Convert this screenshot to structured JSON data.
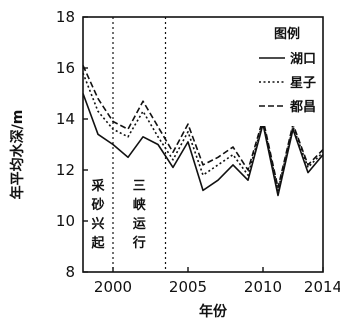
{
  "chart_data": {
    "type": "line",
    "title": "",
    "xlabel": "年份",
    "ylabel": "年平均水深/m",
    "xlim": [
      1998,
      2014
    ],
    "ylim": [
      8,
      18
    ],
    "xticks": [
      2000,
      2005,
      2010,
      2014
    ],
    "yticks": [
      8,
      10,
      12,
      14,
      16,
      18
    ],
    "grid": false,
    "legend": {
      "title": "图例",
      "placement": "top-right"
    },
    "annotations": [
      {
        "text": [
          "采",
          "砂",
          "兴",
          "起"
        ],
        "x_range": [
          1998,
          2000
        ]
      },
      {
        "text": [
          "三",
          "峡",
          "运",
          "行"
        ],
        "x_range": [
          2000,
          2003.5
        ]
      }
    ],
    "vlines": [
      2000,
      2003.5
    ],
    "x": [
      1998,
      1999,
      2000,
      2001,
      2002,
      2003,
      2004,
      2005,
      2006,
      2007,
      2008,
      2009,
      2010,
      2011,
      2012,
      2013,
      2014
    ],
    "series": [
      {
        "name": "湖口",
        "dash": "solid",
        "values": [
          15.0,
          13.4,
          13.0,
          12.5,
          13.3,
          13.0,
          12.1,
          13.1,
          11.2,
          11.6,
          12.2,
          11.6,
          13.8,
          11.0,
          13.6,
          11.9,
          12.6
        ]
      },
      {
        "name": "星子",
        "dash": "dotted",
        "values": [
          15.8,
          14.3,
          13.6,
          13.3,
          14.3,
          13.3,
          12.4,
          13.5,
          11.8,
          12.2,
          12.6,
          11.8,
          13.9,
          11.2,
          13.7,
          12.1,
          12.7
        ]
      },
      {
        "name": "都昌",
        "dash": "dashed",
        "values": [
          16.1,
          14.8,
          13.9,
          13.6,
          14.7,
          13.7,
          12.7,
          13.8,
          12.2,
          12.5,
          12.9,
          12.0,
          14.0,
          11.3,
          13.8,
          12.2,
          12.8
        ]
      }
    ]
  }
}
